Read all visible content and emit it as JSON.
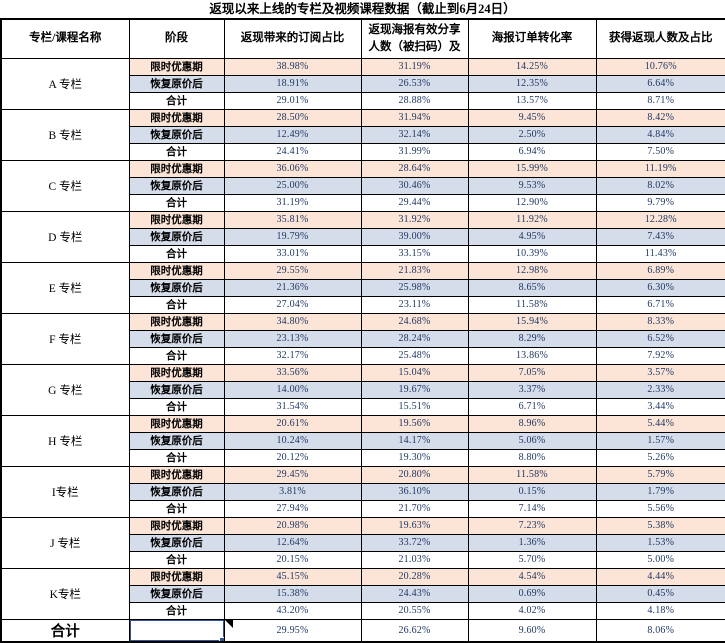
{
  "title": "返现以来上线的专栏及视频课程数据（截止到6月24日）",
  "table": {
    "headers": [
      "专栏/课程名称",
      "阶段",
      "返现带来的订阅占比",
      "返现海报有效分享人数（被扫码）及",
      "海报订单转化率",
      "获得返现人数及占比"
    ],
    "stage_labels": [
      "限时优惠期",
      "恢复原价后",
      "合计"
    ],
    "groups": [
      {
        "name": "A 专栏",
        "rows": [
          [
            "38.98%",
            "31.19%",
            "14.25%",
            "10.76%"
          ],
          [
            "18.91%",
            "26.53%",
            "12.35%",
            "6.64%"
          ],
          [
            "29.01%",
            "28.88%",
            "13.57%",
            "8.71%"
          ]
        ]
      },
      {
        "name": "B 专栏",
        "rows": [
          [
            "28.50%",
            "31.94%",
            "9.45%",
            "8.42%"
          ],
          [
            "12.49%",
            "32.14%",
            "2.50%",
            "4.84%"
          ],
          [
            "24.41%",
            "31.99%",
            "6.94%",
            "7.50%"
          ]
        ]
      },
      {
        "name": "C 专栏",
        "rows": [
          [
            "36.06%",
            "28.64%",
            "15.99%",
            "11.19%"
          ],
          [
            "25.00%",
            "30.46%",
            "9.53%",
            "8.02%"
          ],
          [
            "31.19%",
            "29.44%",
            "12.90%",
            "9.79%"
          ]
        ]
      },
      {
        "name": "D 专栏",
        "rows": [
          [
            "35.81%",
            "31.92%",
            "11.92%",
            "12.28%"
          ],
          [
            "19.79%",
            "39.00%",
            "4.95%",
            "7.43%"
          ],
          [
            "33.01%",
            "33.15%",
            "10.39%",
            "11.43%"
          ]
        ]
      },
      {
        "name": "E 专栏",
        "rows": [
          [
            "29.55%",
            "21.83%",
            "12.98%",
            "6.89%"
          ],
          [
            "21.36%",
            "25.98%",
            "8.65%",
            "6.30%"
          ],
          [
            "27.04%",
            "23.11%",
            "11.58%",
            "6.71%"
          ]
        ]
      },
      {
        "name": "F 专栏",
        "rows": [
          [
            "34.80%",
            "24.68%",
            "15.94%",
            "8.33%"
          ],
          [
            "23.13%",
            "28.24%",
            "8.29%",
            "6.52%"
          ],
          [
            "32.17%",
            "25.48%",
            "13.86%",
            "7.92%"
          ]
        ]
      },
      {
        "name": "G 专栏",
        "rows": [
          [
            "33.56%",
            "15.04%",
            "7.05%",
            "3.57%"
          ],
          [
            "14.00%",
            "19.67%",
            "3.37%",
            "2.33%"
          ],
          [
            "31.54%",
            "15.51%",
            "6.71%",
            "3.44%"
          ]
        ]
      },
      {
        "name": "H 专栏",
        "rows": [
          [
            "20.61%",
            "19.56%",
            "8.96%",
            "5.44%"
          ],
          [
            "10.24%",
            "14.17%",
            "5.06%",
            "1.57%"
          ],
          [
            "20.12%",
            "19.30%",
            "8.80%",
            "5.26%"
          ]
        ]
      },
      {
        "name": "I专栏",
        "rows": [
          [
            "29.45%",
            "20.80%",
            "11.58%",
            "5.79%"
          ],
          [
            "3.81%",
            "36.10%",
            "0.15%",
            "1.79%"
          ],
          [
            "27.94%",
            "21.70%",
            "7.14%",
            "5.56%"
          ]
        ]
      },
      {
        "name": "J 专栏",
        "rows": [
          [
            "20.98%",
            "19.63%",
            "7.23%",
            "5.38%"
          ],
          [
            "12.64%",
            "33.72%",
            "1.36%",
            "1.53%"
          ],
          [
            "20.15%",
            "21.03%",
            "5.70%",
            "5.00%"
          ]
        ]
      },
      {
        "name": "K专栏",
        "rows": [
          [
            "45.15%",
            "20.28%",
            "4.54%",
            "4.44%"
          ],
          [
            "15.38%",
            "24.43%",
            "0.69%",
            "0.45%"
          ],
          [
            "43.20%",
            "20.55%",
            "4.02%",
            "4.18%"
          ]
        ]
      }
    ],
    "grand_total": {
      "label": "合计",
      "stage": "",
      "values": [
        "29.95%",
        "26.62%",
        "9.60%",
        "8.06%"
      ]
    }
  },
  "colors": {
    "promo_row_bg": "#FCE4D6",
    "restore_row_bg": "#D5DCEA",
    "number_text": "#1F3864",
    "selection_border": "#305496",
    "grid_line": "#000000"
  }
}
